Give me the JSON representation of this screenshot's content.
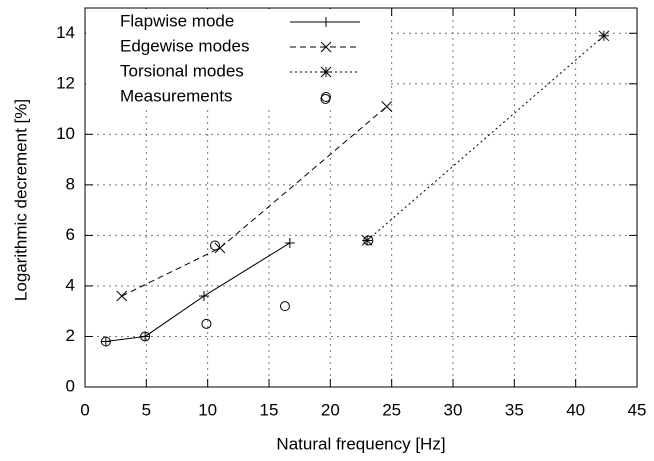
{
  "chart_data": {
    "type": "line",
    "xlabel": "Natural frequency [Hz]",
    "ylabel": "Logarithmic decrement [%]",
    "xlim": [
      0,
      45
    ],
    "xticks": [
      0,
      5,
      10,
      15,
      20,
      25,
      30,
      35,
      40,
      45
    ],
    "ylim": [
      0,
      15
    ],
    "yticks": [
      0,
      2,
      4,
      6,
      8,
      10,
      12,
      14
    ],
    "grid": true,
    "legend": "top-left",
    "series": [
      {
        "name": "Flapwise mode",
        "color": "#000000",
        "marker": "plus",
        "dash": "solid",
        "x": [
          1.7,
          4.9,
          9.7,
          16.7
        ],
        "values": [
          1.8,
          2.0,
          3.6,
          5.7
        ]
      },
      {
        "name": "Edgewise modes",
        "color": "#000000",
        "marker": "cross",
        "dash": "dashed",
        "x": [
          3.0,
          11.0,
          24.6
        ],
        "values": [
          3.6,
          5.5,
          11.1
        ]
      },
      {
        "name": "Torsional modes",
        "color": "#000000",
        "marker": "star",
        "dash": "dotted",
        "x": [
          23.0,
          42.3
        ],
        "values": [
          5.8,
          13.9
        ]
      },
      {
        "name": "Measurements",
        "color": "#000000",
        "marker": "circle",
        "dash": "none",
        "x": [
          1.7,
          4.9,
          9.9,
          10.6,
          16.3,
          19.6,
          23.1
        ],
        "values": [
          1.8,
          2.0,
          2.5,
          5.6,
          3.2,
          11.4,
          5.8
        ]
      }
    ]
  }
}
